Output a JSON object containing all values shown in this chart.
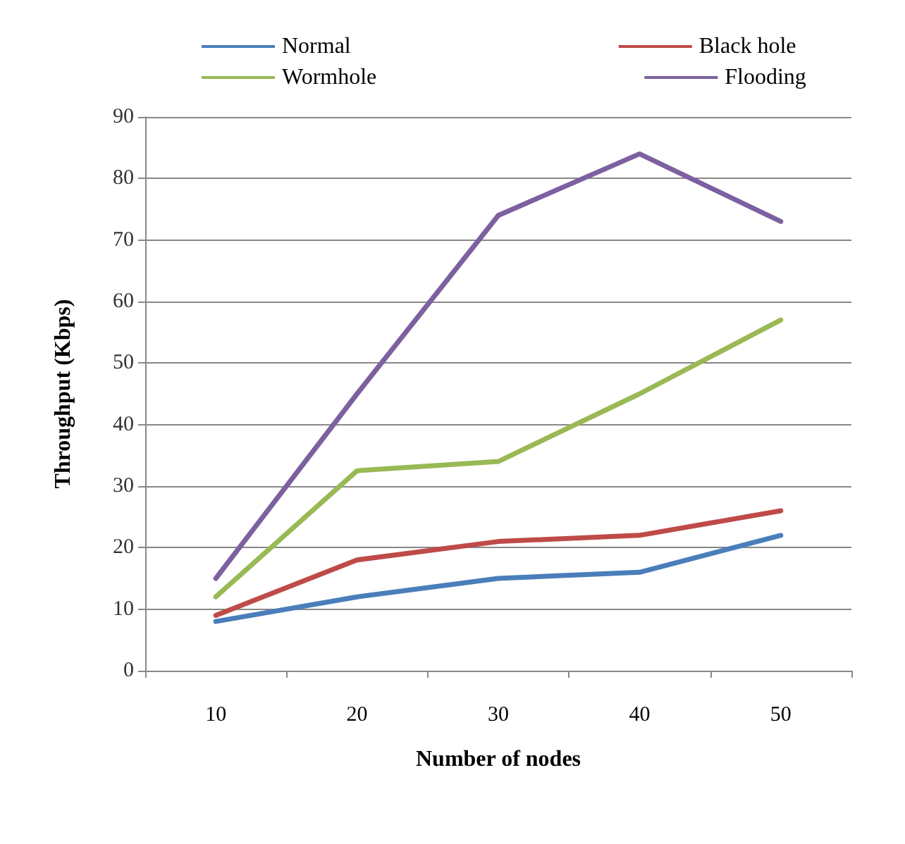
{
  "chart_data": {
    "type": "line",
    "xlabel": "Number of nodes",
    "ylabel": "Throughput (Kbps)",
    "categories": [
      "10",
      "20",
      "30",
      "40",
      "50"
    ],
    "series": [
      {
        "name": "Normal",
        "color": "#4a7ebb",
        "values": [
          8,
          12,
          15,
          16,
          22
        ]
      },
      {
        "name": "Black hole",
        "color": "#be4b48",
        "values": [
          9,
          18,
          21,
          22,
          26
        ]
      },
      {
        "name": "Wormhole",
        "color": "#98b954",
        "values": [
          12,
          32.5,
          34,
          45,
          57
        ]
      },
      {
        "name": "Flooding",
        "color": "#7d60a0",
        "values": [
          15,
          45,
          74,
          84,
          73
        ]
      }
    ],
    "ylim": [
      0,
      90
    ],
    "yticks": [
      0,
      10,
      20,
      30,
      40,
      50,
      60,
      70,
      80,
      90
    ],
    "grid": "y",
    "legend": "top",
    "marker": "none",
    "line_style": "solid"
  }
}
